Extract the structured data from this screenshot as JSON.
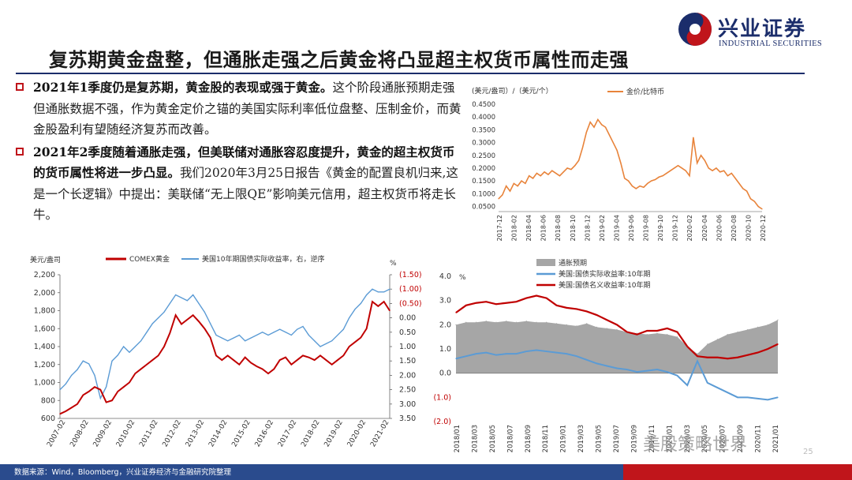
{
  "header": {
    "brand_cn": "兴业证券",
    "brand_en": "INDUSTRIAL SECURITIES",
    "title": "复苏期黄金盘整，但通胀走强之后黄金将凸显超主权货币属性而走强"
  },
  "text": {
    "para1_bold": "2021年1季度仍是复苏期，黄金股的表现或强于黄金。",
    "para1_rest": "这个阶段通胀预期走强但通胀数据不强，作为黄金定价之锚的美国实际利率低位盘整、压制金价，而黄金股盈利有望随经济复苏而改善。",
    "para2_bold": "2021年2季度随着通胀走强，但美联储对通胀容忍度提升，黄金的超主权货币的货币属性将进一步凸显。",
    "para2_rest": "我们2020年3月25日报告《黄金的配置良机归来,这是一个长逻辑》中提出：美联储“无上限QE”影响美元信用，超主权货币将走长牛。"
  },
  "footer": {
    "source": "数据来源：Wind，Bloomberg，兴业证券经济与金融研究院整理",
    "watermark": "美股策略世界",
    "page": "25"
  },
  "colors": {
    "brand_navy": "#1b2d6b",
    "brand_red": "#c0151b",
    "orange_series": "#e8833a",
    "blue_series": "#5b9bd5",
    "dark_red_series": "#c00000",
    "gray_area": "#a6a6a6"
  },
  "chart_data": [
    {
      "id": "gold-bitcoin",
      "type": "line",
      "unit_left": "(美元/盎司）/（美元/个）",
      "legend_position": "top-right",
      "series": [
        {
          "name": "金价/比特币",
          "color": "#e8833a",
          "values": [
            0.08,
            0.095,
            0.13,
            0.11,
            0.14,
            0.13,
            0.15,
            0.14,
            0.17,
            0.16,
            0.18,
            0.17,
            0.185,
            0.175,
            0.19,
            0.18,
            0.17,
            0.185,
            0.2,
            0.195,
            0.21,
            0.23,
            0.28,
            0.34,
            0.38,
            0.36,
            0.39,
            0.37,
            0.36,
            0.33,
            0.3,
            0.27,
            0.22,
            0.16,
            0.15,
            0.13,
            0.12,
            0.13,
            0.125,
            0.14,
            0.15,
            0.155,
            0.165,
            0.17,
            0.18,
            0.19,
            0.2,
            0.21,
            0.2,
            0.19,
            0.17,
            0.32,
            0.22,
            0.25,
            0.23,
            0.2,
            0.19,
            0.2,
            0.185,
            0.19,
            0.17,
            0.18,
            0.16,
            0.14,
            0.12,
            0.11,
            0.08,
            0.07,
            0.05,
            0.04
          ]
        }
      ],
      "x_ticks": [
        "2017-12",
        "2018-02",
        "2018-04",
        "2018-06",
        "2018-08",
        "2018-10",
        "2018-12",
        "2019-02",
        "2019-04",
        "2019-06",
        "2019-08",
        "2019-10",
        "2019-12",
        "2020-02",
        "2020-04",
        "2020-06",
        "2020-08",
        "2020-10",
        "2020-12"
      ],
      "y_ticks": [
        "0.0500",
        "0.1000",
        "0.1500",
        "0.2000",
        "0.2500",
        "0.3000",
        "0.3500",
        "0.4000",
        "0.4500"
      ],
      "ylim": [
        0.03,
        0.45
      ]
    },
    {
      "id": "comex-gold-vs-real-yield",
      "type": "line",
      "unit_left": "美元/盎司",
      "unit_right": "%",
      "legend_position": "top",
      "series": [
        {
          "name": "COMEX黄金",
          "axis": "left",
          "color": "#c00000",
          "values": [
            650,
            680,
            720,
            760,
            860,
            900,
            950,
            920,
            780,
            800,
            900,
            950,
            1000,
            1100,
            1150,
            1200,
            1250,
            1300,
            1400,
            1550,
            1750,
            1650,
            1700,
            1750,
            1680,
            1600,
            1500,
            1300,
            1250,
            1300,
            1250,
            1200,
            1280,
            1220,
            1180,
            1150,
            1100,
            1150,
            1250,
            1280,
            1200,
            1250,
            1300,
            1280,
            1250,
            1300,
            1250,
            1200,
            1250,
            1300,
            1400,
            1450,
            1500,
            1600,
            1900,
            1850,
            1900,
            1800
          ]
        },
        {
          "name": "美国10年期国债实际收益率，右，逆序",
          "axis": "right",
          "color": "#5b9bd5",
          "values": [
            2.5,
            2.3,
            2.0,
            1.8,
            1.5,
            1.6,
            2.0,
            2.8,
            2.4,
            1.5,
            1.3,
            1.0,
            1.2,
            1.0,
            0.8,
            0.5,
            0.2,
            0.0,
            -0.2,
            -0.5,
            -0.8,
            -0.7,
            -0.6,
            -0.8,
            -0.5,
            -0.2,
            0.2,
            0.6,
            0.7,
            0.8,
            0.7,
            0.6,
            0.8,
            0.7,
            0.6,
            0.5,
            0.6,
            0.5,
            0.4,
            0.5,
            0.6,
            0.4,
            0.3,
            0.6,
            0.8,
            1.0,
            0.9,
            0.8,
            0.6,
            0.4,
            0.0,
            -0.3,
            -0.5,
            -0.8,
            -1.0,
            -0.9,
            -0.9,
            -1.0
          ]
        }
      ],
      "x_ticks": [
        "2007-02",
        "2008-02",
        "2009-02",
        "2010-02",
        "2011-02",
        "2012-02",
        "2013-02",
        "2014-02",
        "2015-02",
        "2016-02",
        "2017-02",
        "2018-02",
        "2019-02",
        "2020-02",
        "2021-02"
      ],
      "y_left_ticks": [
        "600",
        "800",
        "1,000",
        "1,200",
        "1,400",
        "1,600",
        "1,800",
        "2,000",
        "2,200"
      ],
      "y_right_ticks": [
        "(1.50)",
        "(1.00)",
        "(0.50)",
        "0.00",
        "0.50",
        "1.00",
        "1.50",
        "2.00",
        "2.50",
        "3.00",
        "3.50"
      ],
      "ylim_left": [
        600,
        2200
      ],
      "ylim_right": [
        -1.5,
        3.5
      ]
    },
    {
      "id": "breakeven-real-nominal",
      "type": "area",
      "unit_left": "%",
      "legend_position": "top",
      "series": [
        {
          "name": "通胀预期",
          "kind": "area",
          "color": "#a6a6a6",
          "values": [
            2.0,
            2.1,
            2.1,
            2.15,
            2.1,
            2.15,
            2.1,
            2.15,
            2.1,
            2.1,
            2.05,
            2.0,
            1.95,
            2.05,
            1.9,
            1.85,
            1.8,
            1.7,
            1.65,
            1.6,
            1.65,
            1.6,
            1.5,
            1.1,
            0.8,
            1.2,
            1.4,
            1.6,
            1.7,
            1.8,
            1.9,
            2.0,
            2.2
          ]
        },
        {
          "name": "美国:国债实际收益率:10年期",
          "kind": "line",
          "color": "#5b9bd5",
          "values": [
            0.6,
            0.7,
            0.8,
            0.85,
            0.75,
            0.8,
            0.8,
            0.9,
            0.95,
            0.9,
            0.85,
            0.8,
            0.7,
            0.55,
            0.4,
            0.3,
            0.2,
            0.15,
            0.05,
            0.1,
            0.15,
            0.05,
            -0.1,
            -0.5,
            0.5,
            -0.4,
            -0.6,
            -0.8,
            -1.0,
            -1.0,
            -1.05,
            -1.1,
            -1.0
          ]
        },
        {
          "name": "美国:国债名义收益率:10年期",
          "kind": "line",
          "color": "#c00000",
          "values": [
            2.5,
            2.8,
            2.9,
            2.95,
            2.85,
            2.9,
            2.95,
            3.1,
            3.2,
            3.1,
            2.8,
            2.7,
            2.65,
            2.55,
            2.4,
            2.2,
            2.0,
            1.7,
            1.6,
            1.75,
            1.75,
            1.85,
            1.7,
            1.1,
            0.7,
            0.65,
            0.65,
            0.6,
            0.65,
            0.75,
            0.85,
            1.0,
            1.2
          ]
        }
      ],
      "x_ticks": [
        "2018/01",
        "2018/03",
        "2018/05",
        "2018/07",
        "2018/09",
        "2018/11",
        "2019/01",
        "2019/03",
        "2019/05",
        "2019/07",
        "2019/09",
        "2019/11",
        "2020/01",
        "2020/03",
        "2020/05",
        "2020/07",
        "2020/09",
        "2020/11",
        "2021/01"
      ],
      "y_ticks": [
        "(2.0)",
        "(1.0)",
        "0.0",
        "1.0",
        "2.0",
        "3.0",
        "4.0"
      ],
      "ylim": [
        -2.0,
        4.0
      ]
    }
  ]
}
